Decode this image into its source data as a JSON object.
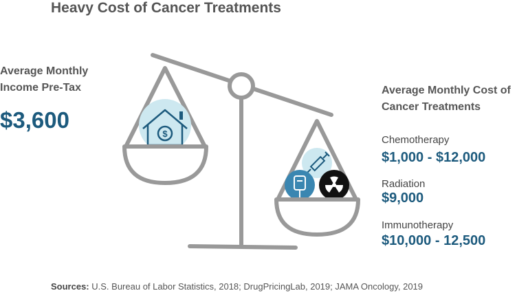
{
  "title": "Heavy Cost of Cancer Treatments",
  "income": {
    "label": "Average Monthly Income Pre-Tax",
    "value": "$3,600"
  },
  "costs": {
    "label": "Average Monthly Cost of Cancer Treatments",
    "items": [
      {
        "name": "Chemotherapy",
        "value": "$1,000 - $12,000"
      },
      {
        "name": "Radiation",
        "value": "$9,000"
      },
      {
        "name": "Immunotherapy",
        "value": "$10,000 - 12,500"
      }
    ]
  },
  "sources": {
    "label": "Sources:",
    "text": "U.S. Bureau of Labor Statistics, 2018; DrugPricingLab, 2019; JAMA Oncology, 2019"
  },
  "icons": {
    "left_pan": "house-dollar-icon",
    "right_pan": [
      "iv-bag-icon",
      "syringe-icon",
      "radiation-icon"
    ]
  },
  "colors": {
    "accent": "#1c5a7d",
    "scale": "#999999",
    "icon_bg_light": "#cde8f0",
    "icon_bg_mid": "#3a86b1",
    "icon_bg_dark": "#111111"
  }
}
